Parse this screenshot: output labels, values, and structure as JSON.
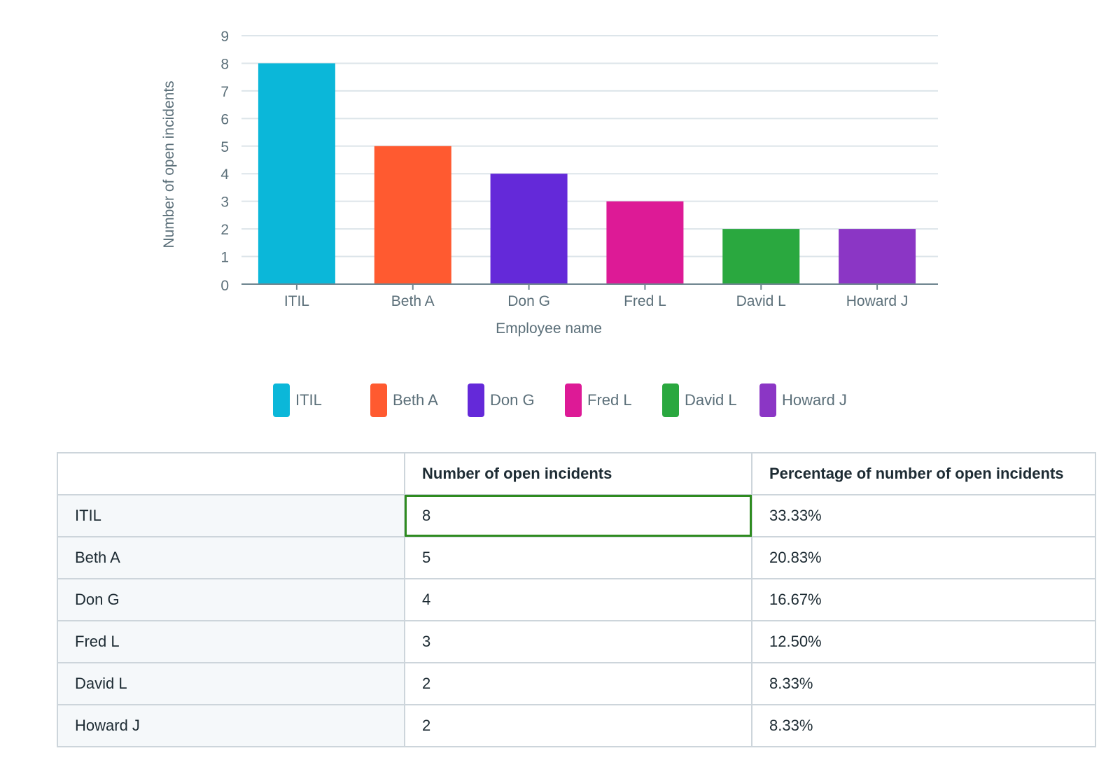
{
  "chart_data": {
    "type": "bar",
    "categories": [
      "ITIL",
      "Beth A",
      "Don G",
      "Fred L",
      "David L",
      "Howard J"
    ],
    "values": [
      8,
      5,
      4,
      3,
      2,
      2
    ],
    "colors": [
      "#0bb7d9",
      "#ff5a30",
      "#6429d9",
      "#dd1a96",
      "#2aa83f",
      "#8b36c5"
    ],
    "xlabel": "Employee name",
    "ylabel": "Number of open incidents",
    "ylim": [
      0,
      9
    ],
    "yticks": [
      "0",
      "1",
      "2",
      "3",
      "4",
      "5",
      "6",
      "7",
      "8",
      "9"
    ],
    "grid": true,
    "legend": "bottom"
  },
  "table": {
    "headers": [
      "",
      "Number of open incidents",
      "Percentage of number of open incidents"
    ],
    "rows": [
      [
        "ITIL",
        "8",
        "33.33%"
      ],
      [
        "Beth A",
        "5",
        "20.83%"
      ],
      [
        "Don G",
        "4",
        "16.67%"
      ],
      [
        "Fred L",
        "3",
        "12.50%"
      ],
      [
        "David L",
        "2",
        "8.33%"
      ],
      [
        "Howard J",
        "2",
        "8.33%"
      ]
    ],
    "selected_cell": "ITIL / Number of open incidents",
    "selection_color": "#2e8b20"
  }
}
